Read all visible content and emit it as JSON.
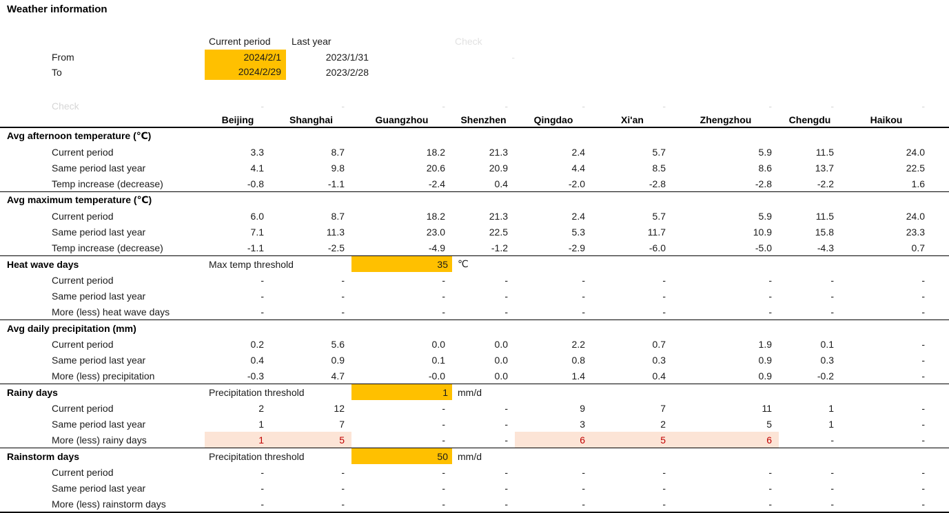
{
  "title": "Weather information",
  "colors": {
    "highlight_orange": "#FFC000",
    "highlight_pink": "#FCE4D6",
    "negative_red": "#C00000",
    "check_gray": "#E2E2E2"
  },
  "header": {
    "col_current": "Current period",
    "col_last": "Last year",
    "check_label": "Check",
    "check_dash": "-",
    "rows": [
      {
        "label": "From",
        "current": "2024/2/1",
        "last": "2023/1/31"
      },
      {
        "label": "To",
        "current": "2024/2/29",
        "last": "2023/2/28"
      }
    ]
  },
  "check_row": {
    "label": "Check",
    "dashes": [
      "-",
      "-",
      "-",
      "-",
      "-",
      "-",
      "-",
      "-",
      "-"
    ]
  },
  "cities": [
    "Beijing",
    "Shanghai",
    "Guangzhou",
    "Shenzhen",
    "Qingdao",
    "Xi'an",
    "Zhengzhou",
    "Chengdu",
    "Haikou"
  ],
  "sections": [
    {
      "title": "Avg afternoon temperature (℃)",
      "threshold": null,
      "divider": "thin",
      "rows": [
        {
          "label": "Current period",
          "values": [
            "3.3",
            "8.7",
            "18.2",
            "21.3",
            "2.4",
            "5.7",
            "5.9",
            "11.5",
            "24.0"
          ]
        },
        {
          "label": "Same period last year",
          "values": [
            "4.1",
            "9.8",
            "20.6",
            "20.9",
            "4.4",
            "8.5",
            "8.6",
            "13.7",
            "22.5"
          ]
        },
        {
          "label": "Temp increase (decrease)",
          "values": [
            "-0.8",
            "-1.1",
            "-2.4",
            "0.4",
            "-2.0",
            "-2.8",
            "-2.8",
            "-2.2",
            "1.6"
          ]
        }
      ]
    },
    {
      "title": "Avg maximum temperature (℃)",
      "threshold": null,
      "divider": "thin",
      "rows": [
        {
          "label": "Current period",
          "values": [
            "6.0",
            "8.7",
            "18.2",
            "21.3",
            "2.4",
            "5.7",
            "5.9",
            "11.5",
            "24.0"
          ]
        },
        {
          "label": "Same period last year",
          "values": [
            "7.1",
            "11.3",
            "23.0",
            "22.5",
            "5.3",
            "11.7",
            "10.9",
            "15.8",
            "23.3"
          ]
        },
        {
          "label": "Temp increase (decrease)",
          "values": [
            "-1.1",
            "-2.5",
            "-4.9",
            "-1.2",
            "-2.9",
            "-6.0",
            "-5.0",
            "-4.3",
            "0.7"
          ]
        }
      ]
    },
    {
      "title": "Heat wave days",
      "threshold": {
        "label": "Max temp threshold",
        "value": "35",
        "unit": "℃"
      },
      "divider": "thin",
      "rows": [
        {
          "label": "Current period",
          "values": [
            "-",
            "-",
            "-",
            "-",
            "-",
            "-",
            "-",
            "-",
            "-"
          ]
        },
        {
          "label": "Same period last year",
          "values": [
            "-",
            "-",
            "-",
            "-",
            "-",
            "-",
            "-",
            "-",
            "-"
          ]
        },
        {
          "label": "More (less) heat wave days",
          "values": [
            "-",
            "-",
            "-",
            "-",
            "-",
            "-",
            "-",
            "-",
            "-"
          ]
        }
      ]
    },
    {
      "title": "Avg daily precipitation (mm)",
      "threshold": null,
      "divider": "thin",
      "rows": [
        {
          "label": "Current period",
          "values": [
            "0.2",
            "5.6",
            "0.0",
            "0.0",
            "2.2",
            "0.7",
            "1.9",
            "0.1",
            "-"
          ]
        },
        {
          "label": "Same period last year",
          "values": [
            "0.4",
            "0.9",
            "0.1",
            "0.0",
            "0.8",
            "0.3",
            "0.9",
            "0.3",
            "-"
          ]
        },
        {
          "label": "More (less) precipitation",
          "values": [
            "-0.3",
            "4.7",
            "-0.0",
            "0.0",
            "1.4",
            "0.4",
            "0.9",
            "-0.2",
            "-"
          ]
        }
      ]
    },
    {
      "title": "Rainy days",
      "threshold": {
        "label": "Precipitation threshold",
        "value": "1",
        "unit": "mm/d"
      },
      "divider": "thin",
      "rows": [
        {
          "label": "Current period",
          "values": [
            "2",
            "12",
            "-",
            "-",
            "9",
            "7",
            "11",
            "1",
            "-"
          ]
        },
        {
          "label": "Same period last year",
          "values": [
            "1",
            "7",
            "-",
            "-",
            "3",
            "2",
            "5",
            "1",
            "-"
          ]
        },
        {
          "label": "More (less) rainy days",
          "values": [
            "1",
            "5",
            "-",
            "-",
            "6",
            "5",
            "6",
            "-",
            "-"
          ],
          "highlight": [
            true,
            true,
            false,
            false,
            true,
            true,
            true,
            false,
            false
          ]
        }
      ]
    },
    {
      "title": "Rainstorm days",
      "threshold": {
        "label": "Precipitation threshold",
        "value": "50",
        "unit": "mm/d"
      },
      "divider": "thick",
      "rows": [
        {
          "label": "Current period",
          "values": [
            "-",
            "-",
            "-",
            "-",
            "-",
            "-",
            "-",
            "-",
            "-"
          ]
        },
        {
          "label": "Same period last year",
          "values": [
            "-",
            "-",
            "-",
            "-",
            "-",
            "-",
            "-",
            "-",
            "-"
          ]
        },
        {
          "label": "More (less) rainstorm days",
          "values": [
            "-",
            "-",
            "-",
            "-",
            "-",
            "-",
            "-",
            "-",
            "-"
          ]
        }
      ]
    }
  ]
}
